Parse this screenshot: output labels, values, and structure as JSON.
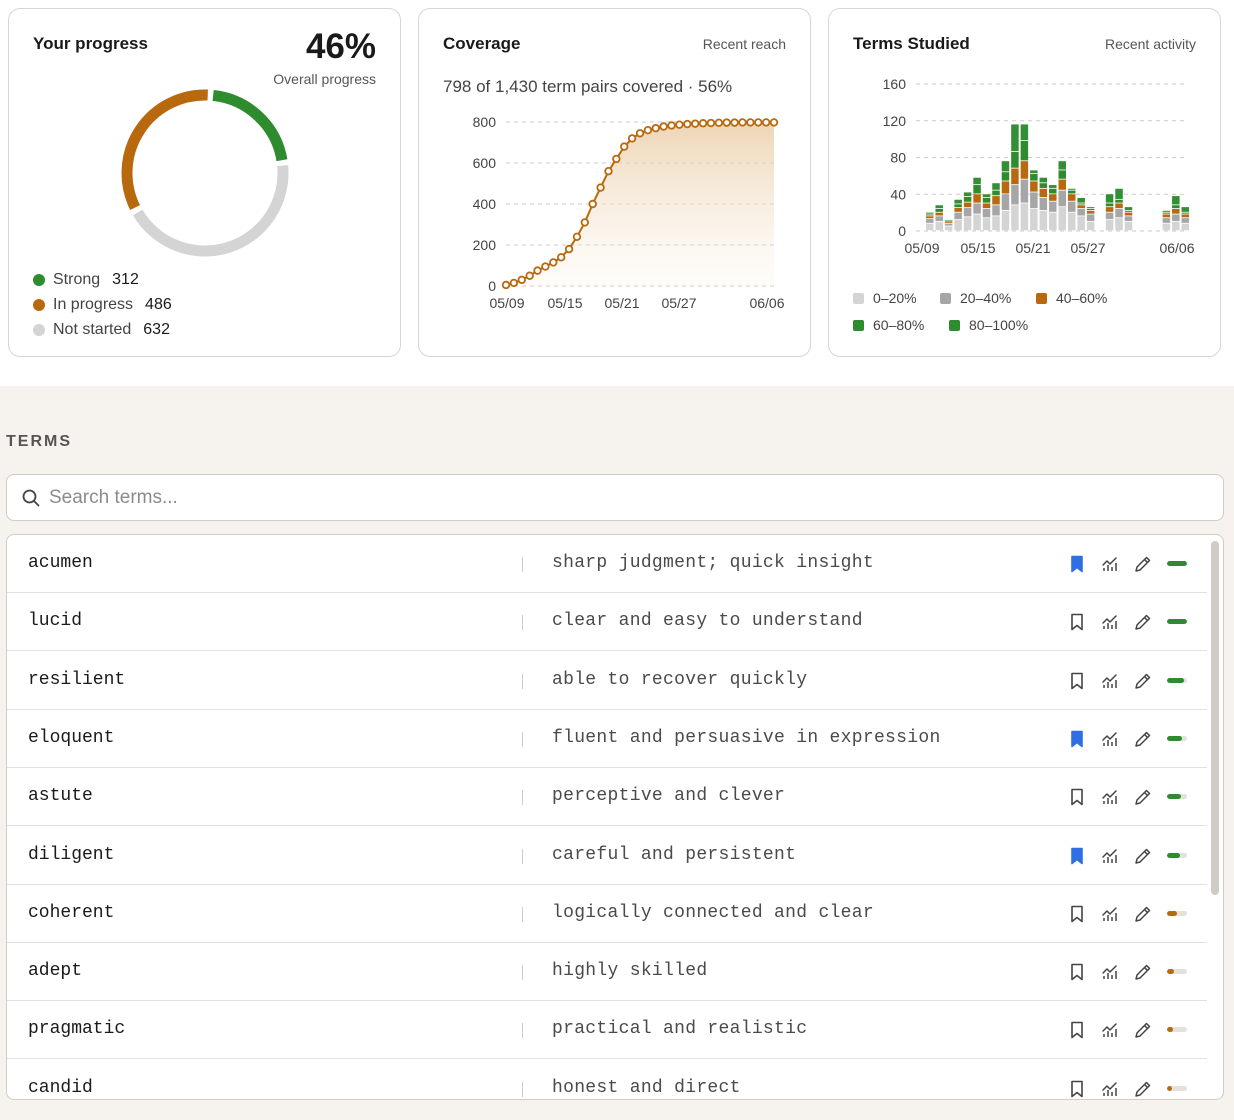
{
  "progress": {
    "title": "Your progress",
    "percent": "46%",
    "percent_label": "Overall progress",
    "legend": [
      {
        "label": "Strong",
        "value": "312",
        "color": "#2e8b2e"
      },
      {
        "label": "In progress",
        "value": "486",
        "color": "#b8690e"
      },
      {
        "label": "Not started",
        "value": "632",
        "color": "#d4d4d4"
      }
    ]
  },
  "coverage": {
    "title": "Coverage",
    "subtitle": "Recent reach",
    "summary": "798 of 1,430 term pairs covered · 56%"
  },
  "studied": {
    "title": "Terms Studied",
    "subtitle": "Recent activity"
  },
  "chart_data": [
    {
      "type": "pie",
      "title": "Your progress",
      "categories": [
        "Strong",
        "In progress",
        "Not started"
      ],
      "values": [
        312,
        486,
        632
      ],
      "colors": [
        "#2e8b2e",
        "#b8690e",
        "#d4d4d4"
      ]
    },
    {
      "type": "line",
      "title": "Coverage",
      "x_ticks": [
        "05/09",
        "05/15",
        "05/21",
        "05/27",
        "06/06"
      ],
      "ylim": [
        0,
        800
      ],
      "y_ticks": [
        "0",
        "200",
        "400",
        "600",
        "800"
      ],
      "color": "#b8690e",
      "values": [
        5,
        15,
        30,
        50,
        75,
        95,
        115,
        140,
        180,
        240,
        310,
        400,
        480,
        560,
        620,
        680,
        720,
        745,
        760,
        770,
        778,
        783,
        787,
        790,
        792,
        794,
        795,
        796,
        797,
        797,
        798,
        798,
        798,
        798,
        798
      ]
    },
    {
      "type": "bar",
      "stacked": true,
      "title": "Terms Studied",
      "x_ticks": [
        "05/09",
        "05/15",
        "05/21",
        "05/27",
        "06/06"
      ],
      "ylim": [
        0,
        160
      ],
      "y_ticks": [
        "0",
        "40",
        "80",
        "120",
        "160"
      ],
      "legend": [
        "0–20%",
        "20–40%",
        "40–60%",
        "60–80%",
        "80–100%"
      ],
      "colors": [
        "#d4d4d4",
        "#a6a6a6",
        "#b8690e",
        "#2e8b2e",
        "#2e8b2e"
      ],
      "series": [
        {
          "name": "0–20%",
          "values": [
            8,
            10,
            5,
            12,
            15,
            18,
            14,
            16,
            22,
            28,
            30,
            24,
            22,
            20,
            26,
            20,
            16,
            10,
            0,
            12,
            14,
            10,
            0,
            0,
            0,
            8,
            10,
            8
          ]
        },
        {
          "name": "20–40%",
          "values": [
            5,
            6,
            3,
            8,
            10,
            12,
            10,
            12,
            18,
            22,
            26,
            18,
            14,
            12,
            18,
            12,
            8,
            8,
            0,
            8,
            10,
            6,
            0,
            0,
            0,
            6,
            8,
            6
          ]
        },
        {
          "name": "40–60%",
          "values": [
            3,
            4,
            2,
            5,
            6,
            10,
            6,
            10,
            14,
            18,
            20,
            12,
            10,
            8,
            12,
            8,
            4,
            4,
            0,
            6,
            6,
            4,
            0,
            0,
            0,
            4,
            6,
            4
          ]
        },
        {
          "name": "60–80%",
          "values": [
            2,
            4,
            1,
            4,
            6,
            10,
            6,
            6,
            10,
            18,
            22,
            8,
            6,
            6,
            10,
            4,
            2,
            2,
            0,
            4,
            4,
            2,
            0,
            0,
            0,
            2,
            4,
            2
          ]
        },
        {
          "name": "80–100%",
          "values": [
            2,
            4,
            1,
            5,
            5,
            8,
            4,
            8,
            12,
            30,
            18,
            4,
            6,
            4,
            10,
            2,
            6,
            2,
            0,
            10,
            12,
            4,
            0,
            0,
            0,
            2,
            10,
            6
          ]
        }
      ]
    }
  ],
  "terms_section": {
    "title": "TERMS",
    "search_placeholder": "Search terms...",
    "rows": [
      {
        "term": "acumen",
        "definition": "sharp judgment; quick insight",
        "bookmarked": true,
        "mastery": 1.0
      },
      {
        "term": "lucid",
        "definition": "clear and easy to understand",
        "bookmarked": false,
        "mastery": 1.0
      },
      {
        "term": "resilient",
        "definition": "able to recover quickly",
        "bookmarked": false,
        "mastery": 0.85
      },
      {
        "term": "eloquent",
        "definition": "fluent and persuasive in expression",
        "bookmarked": true,
        "mastery": 0.75
      },
      {
        "term": "astute",
        "definition": "perceptive and clever",
        "bookmarked": false,
        "mastery": 0.7
      },
      {
        "term": "diligent",
        "definition": "careful and persistent",
        "bookmarked": true,
        "mastery": 0.65
      },
      {
        "term": "coherent",
        "definition": "logically connected and clear",
        "bookmarked": false,
        "mastery": 0.5
      },
      {
        "term": "adept",
        "definition": "highly skilled",
        "bookmarked": false,
        "mastery": 0.35
      },
      {
        "term": "pragmatic",
        "definition": "practical and realistic",
        "bookmarked": false,
        "mastery": 0.3
      },
      {
        "term": "candid",
        "definition": "honest and direct",
        "bookmarked": false,
        "mastery": 0.25
      }
    ]
  },
  "icons": {
    "search": "search-icon",
    "bookmark": "bookmark-icon",
    "stats": "stats-chart-icon",
    "edit": "pencil-icon"
  },
  "colors": {
    "strong": "#2e8b2e",
    "progress": "#b8690e",
    "bookmark_active": "#2f6fe4"
  }
}
